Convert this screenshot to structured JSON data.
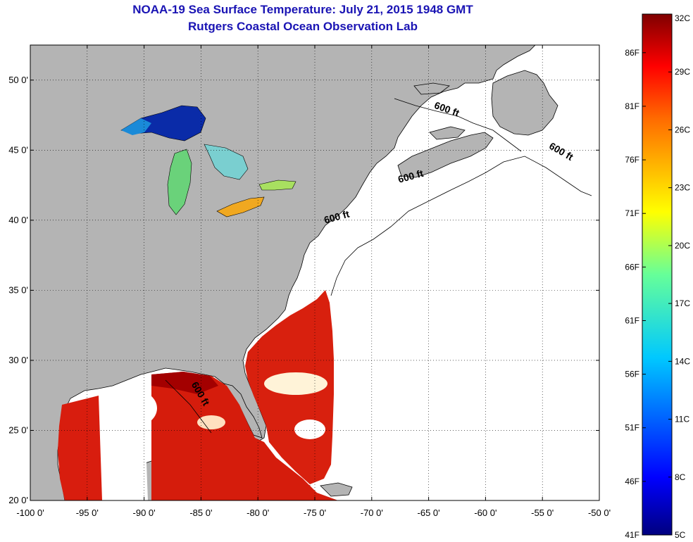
{
  "title": {
    "line1": "NOAA-19 Sea Surface Temperature:  July 21, 2015 1948 GMT",
    "line2": "Rutgers Coastal Ocean Observation Lab"
  },
  "map": {
    "lon_range": [
      -100,
      -50
    ],
    "lat_range": [
      20,
      52.5
    ],
    "x_ticks": [
      {
        "value": -100,
        "label": "-100 0'"
      },
      {
        "value": -95,
        "label": "-95 0'"
      },
      {
        "value": -90,
        "label": "-90 0'"
      },
      {
        "value": -85,
        "label": "-85 0'"
      },
      {
        "value": -80,
        "label": "-80 0'"
      },
      {
        "value": -75,
        "label": "-75 0'"
      },
      {
        "value": -70,
        "label": "-70 0'"
      },
      {
        "value": -65,
        "label": "-65 0'"
      },
      {
        "value": -60,
        "label": "-60 0'"
      },
      {
        "value": -55,
        "label": "-55 0'"
      },
      {
        "value": -50,
        "label": "-50 0'"
      }
    ],
    "y_ticks": [
      {
        "value": 50,
        "label": "50 0'"
      },
      {
        "value": 45,
        "label": "45 0'"
      },
      {
        "value": 40,
        "label": "40 0'"
      },
      {
        "value": 35,
        "label": "35 0'"
      },
      {
        "value": 30,
        "label": "30 0'"
      },
      {
        "value": 25,
        "label": "25 0'"
      },
      {
        "value": 20,
        "label": "20 0'"
      }
    ],
    "contour_labels": [
      {
        "text": "600 ft",
        "lon": -63.5,
        "lat": 47.7
      },
      {
        "text": "600 ft",
        "lon": -53.5,
        "lat": 44.7
      },
      {
        "text": "600 ft",
        "lon": -66.5,
        "lat": 42.9
      },
      {
        "text": "600 ft",
        "lon": -73.0,
        "lat": 40.0
      },
      {
        "text": "600 ft",
        "lon": -85.3,
        "lat": 27.5
      }
    ],
    "colors": {
      "land": "#b4b4b4",
      "ocean_no_data": "#ffffff",
      "warm_water": "#d81d0e",
      "hot_water": "#a30000",
      "lake_cold": "#0a2ba8",
      "lake_mid": "#5ad08a",
      "lake_warm": "#f0a820"
    }
  },
  "colorbar": {
    "min_c": 5,
    "max_c": 32,
    "celsius_ticks": [
      {
        "value": 32,
        "label": "32C"
      },
      {
        "value": 29,
        "label": "29C"
      },
      {
        "value": 26,
        "label": "26C"
      },
      {
        "value": 23,
        "label": "23C"
      },
      {
        "value": 20,
        "label": "20C"
      },
      {
        "value": 17,
        "label": "17C"
      },
      {
        "value": 14,
        "label": "14C"
      },
      {
        "value": 11,
        "label": "11C"
      },
      {
        "value": 8,
        "label": "8C"
      },
      {
        "value": 5,
        "label": "5C"
      }
    ],
    "fahrenheit_ticks": [
      {
        "value": 86,
        "label": "86F"
      },
      {
        "value": 81,
        "label": "81F"
      },
      {
        "value": 76,
        "label": "76F"
      },
      {
        "value": 71,
        "label": "71F"
      },
      {
        "value": 66,
        "label": "66F"
      },
      {
        "value": 61,
        "label": "61F"
      },
      {
        "value": 56,
        "label": "56F"
      },
      {
        "value": 51,
        "label": "51F"
      },
      {
        "value": 46,
        "label": "46F"
      },
      {
        "value": 41,
        "label": "41F"
      }
    ]
  }
}
